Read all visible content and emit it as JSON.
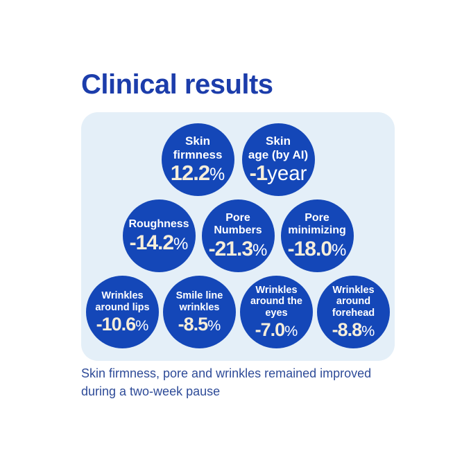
{
  "title": "Clinical results",
  "colors": {
    "background": "#ffffff",
    "title": "#1c3dab",
    "panel_background": "#e4eff8",
    "circle": "#1447b8",
    "label": "#ffffff",
    "number": "#f6eeda",
    "unit": "#ffffff",
    "footer": "#2e4b98"
  },
  "panel": {
    "rows": [
      {
        "circles": [
          {
            "label_lines": [
              "Skin",
              "firmness"
            ],
            "value": "12.2",
            "unit": "%"
          },
          {
            "label_lines": [
              "Skin",
              "age (by AI)"
            ],
            "value": "-1",
            "unit": "year"
          }
        ]
      },
      {
        "circles": [
          {
            "label_lines": [
              "Roughness"
            ],
            "value": "-14.2",
            "unit": "%"
          },
          {
            "label_lines": [
              "Pore",
              "Numbers"
            ],
            "value": "-21.3",
            "unit": "%"
          },
          {
            "label_lines": [
              "Pore",
              "minimizing"
            ],
            "value": "-18.0",
            "unit": "%"
          }
        ]
      },
      {
        "circles": [
          {
            "label_lines": [
              "Wrinkles",
              "around lips"
            ],
            "value": "-10.6",
            "unit": "%"
          },
          {
            "label_lines": [
              "Smile line",
              "wrinkles"
            ],
            "value": "-8.5",
            "unit": "%"
          },
          {
            "label_lines": [
              "Wrinkles",
              "around the",
              "eyes"
            ],
            "value": "-7.0",
            "unit": "%"
          },
          {
            "label_lines": [
              "Wrinkles",
              "around",
              "forehead"
            ],
            "value": "-8.8",
            "unit": "%"
          }
        ]
      }
    ]
  },
  "footer": {
    "line1": "Skin firmness, pore and wrinkles remained improved",
    "line2": "during a two-week pause"
  },
  "chart_data": {
    "type": "table",
    "title": "Clinical results",
    "categories": [
      "Skin firmness",
      "Skin age (by AI)",
      "Roughness",
      "Pore Numbers",
      "Pore minimizing",
      "Wrinkles around lips",
      "Smile line wrinkles",
      "Wrinkles around the eyes",
      "Wrinkles around forehead"
    ],
    "values": [
      "12.2%",
      "-1 year",
      "-14.2%",
      "-21.3%",
      "-18.0%",
      "-10.6%",
      "-8.5%",
      "-7.0%",
      "-8.8%"
    ],
    "annotations": [
      "Skin firmness, pore and wrinkles remained improved during a two-week pause"
    ],
    "legend_position": "none",
    "grid": false
  }
}
